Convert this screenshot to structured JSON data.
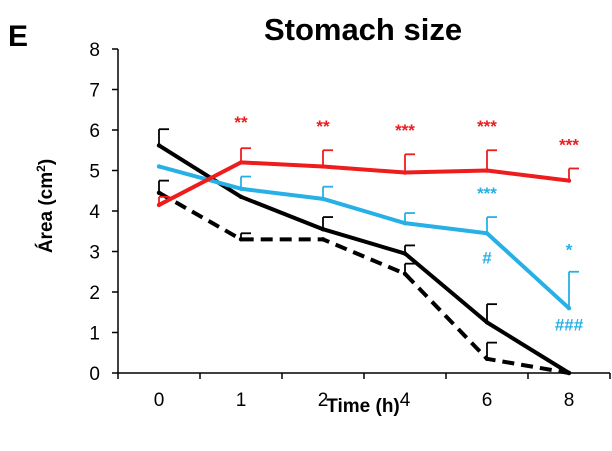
{
  "panel_label": "E",
  "chart_data": {
    "type": "line",
    "title": "Stomach size",
    "xlabel": "Time (h)",
    "ylabel_main": "Área (cm",
    "ylabel_sup": "2",
    "ylabel_tail": ")",
    "categories": [
      "0",
      "1",
      "2",
      "4",
      "6",
      "8"
    ],
    "ylim": [
      0,
      8
    ],
    "yticks": [
      0,
      1,
      2,
      3,
      4,
      5,
      6,
      7,
      8
    ],
    "grid": false,
    "colors": {
      "red": "#ee1c1c",
      "blue": "#27b0e6",
      "black": "#000000"
    },
    "series": [
      {
        "color": "#000000",
        "dash": "dashed",
        "values": [
          4.45,
          3.3,
          3.3,
          2.45,
          0.35,
          0.0
        ],
        "err": [
          0.3,
          0.15,
          0,
          0.25,
          0.4,
          0
        ]
      },
      {
        "color": "#000000",
        "dash": "solid",
        "values": [
          5.62,
          4.35,
          3.55,
          2.95,
          1.25,
          0.0
        ],
        "err": [
          0.4,
          0,
          0.3,
          0.2,
          0.45,
          0
        ]
      },
      {
        "color": "#27b0e6",
        "dash": "solid",
        "values": [
          5.1,
          4.55,
          4.3,
          3.7,
          3.45,
          1.6
        ],
        "err": [
          0,
          0.3,
          0.3,
          0.25,
          0.4,
          0.9
        ]
      },
      {
        "color": "#ee1c1c",
        "dash": "solid",
        "values": [
          4.15,
          5.2,
          5.1,
          4.95,
          5.0,
          4.75
        ],
        "err": [
          0.2,
          0.35,
          0.4,
          0.45,
          0.5,
          0.3
        ]
      }
    ],
    "annotations": [
      {
        "text": "**",
        "color": "#ee1c1c",
        "cat": 1,
        "y": 6.05
      },
      {
        "text": "**",
        "color": "#ee1c1c",
        "cat": 2,
        "y": 5.95
      },
      {
        "text": "***",
        "color": "#ee1c1c",
        "cat": 3,
        "y": 5.85
      },
      {
        "text": "***",
        "color": "#ee1c1c",
        "cat": 4,
        "y": 5.95
      },
      {
        "text": "***",
        "color": "#ee1c1c",
        "cat": 5,
        "y": 5.5
      },
      {
        "text": "***",
        "color": "#27b0e6",
        "cat": 4,
        "y": 4.3
      },
      {
        "text": "#",
        "color": "#27b0e6",
        "cat": 4,
        "y": 2.7
      },
      {
        "text": "*",
        "color": "#27b0e6",
        "cat": 5,
        "y": 2.9
      },
      {
        "text": "###",
        "color": "#27b0e6",
        "cat": 5,
        "y": 1.05
      }
    ]
  }
}
